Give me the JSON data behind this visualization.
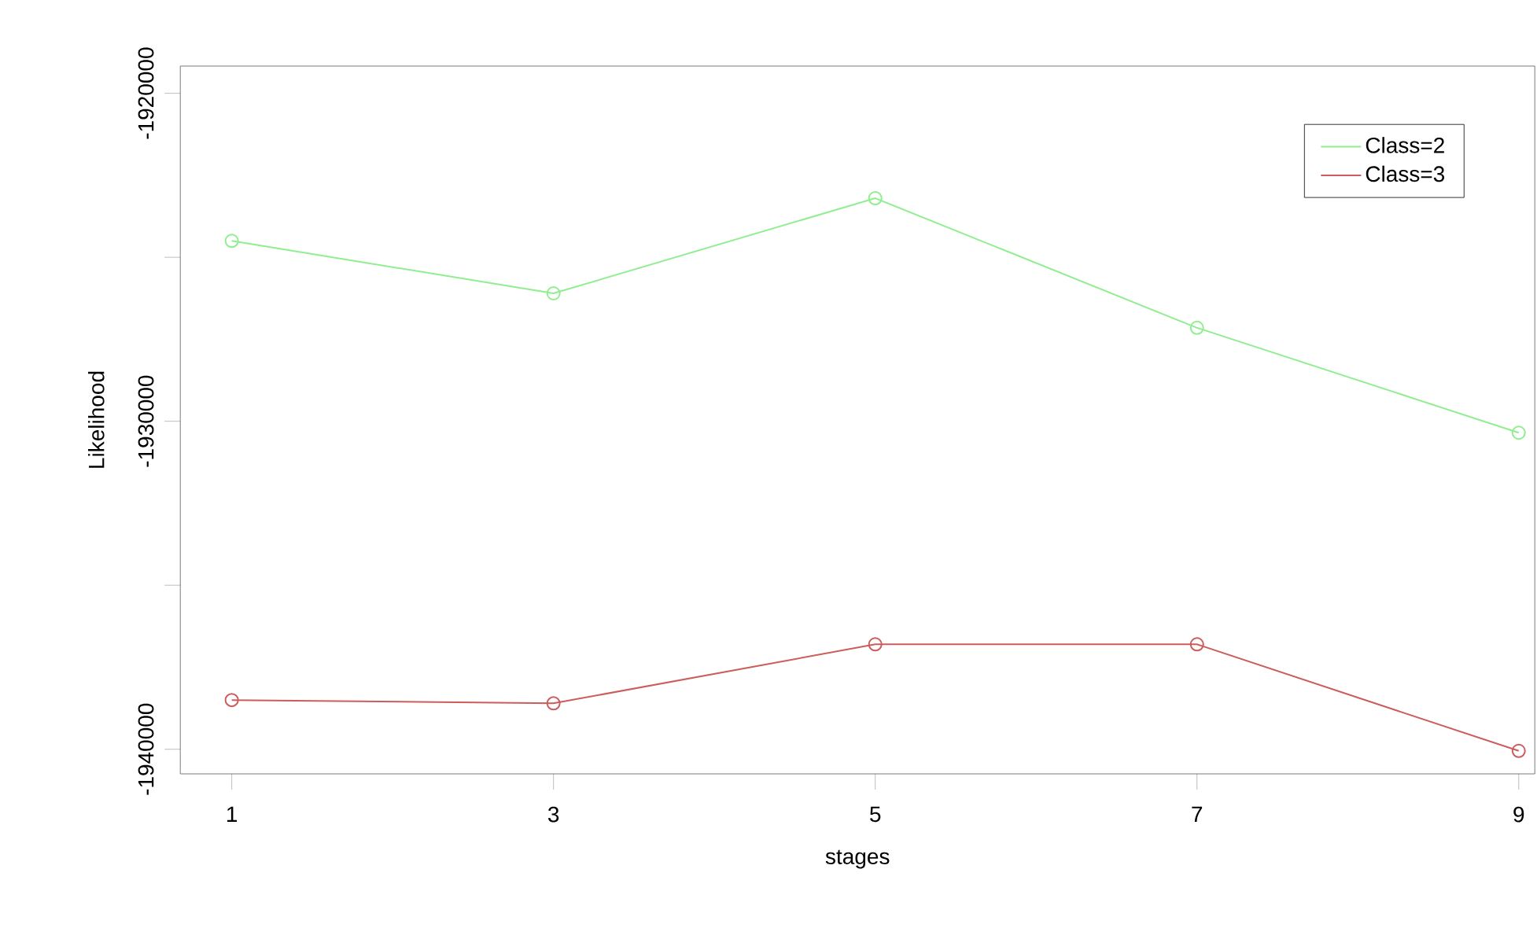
{
  "chart_data": {
    "type": "line",
    "xlabel": "stages",
    "ylabel": "Likelihood",
    "x": [
      1,
      3,
      5,
      7,
      9
    ],
    "series": [
      {
        "name": "Class=2",
        "color": "#90ee90",
        "values": [
          -1924500,
          -1926100,
          -1923200,
          -1927150,
          -1930350
        ]
      },
      {
        "name": "Class=3",
        "color": "#cd5c5c",
        "values": [
          -1938500,
          -1938600,
          -1936800,
          -1936800,
          -1940050
        ]
      }
    ],
    "xlim": [
      0.68,
      9.1
    ],
    "ylim": [
      -1940750,
      -1919170
    ],
    "xticks": [
      1,
      3,
      5,
      7,
      9
    ],
    "yticks": [
      -1920000,
      {
        "value": -1925000,
        "label": null
      },
      -1930000,
      {
        "value": -1935000,
        "label": null
      },
      -1940000
    ],
    "marker": "circle",
    "line_style": "solid",
    "grid": false,
    "legend": "top right"
  }
}
